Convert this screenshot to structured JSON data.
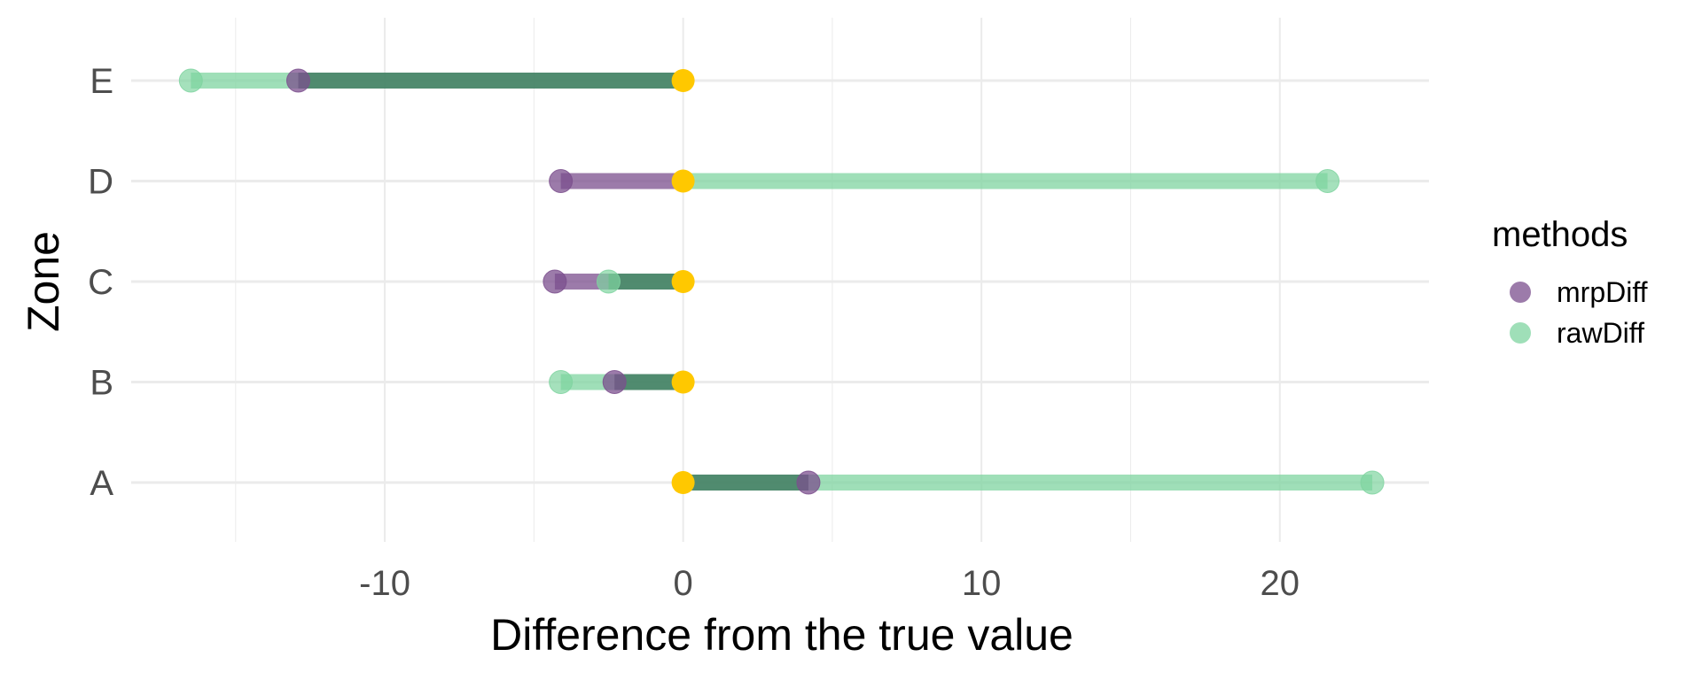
{
  "chart_data": {
    "type": "dumbbell",
    "xlabel": "Difference from the true value",
    "ylabel": "Zone",
    "xlim": [
      -18.5,
      25
    ],
    "x_ticks": [
      -10,
      0,
      10,
      20
    ],
    "x_tick_labels": [
      "-10",
      "0",
      "10",
      "20"
    ],
    "categories": [
      "A",
      "B",
      "C",
      "D",
      "E"
    ],
    "grid": true,
    "baseline_value": 0,
    "series": [
      {
        "name": "mrpDiff",
        "values": [
          4.2,
          -2.3,
          -4.3,
          -4.1,
          -12.9
        ]
      },
      {
        "name": "rawDiff",
        "values": [
          23.1,
          -4.1,
          -2.5,
          21.6,
          -16.5
        ]
      }
    ],
    "colors": {
      "mrpDiff": "#7b4f8d",
      "rawDiff": "#7fd4a0",
      "overlap": "#3d7a5e",
      "baseline": "#ffc800",
      "grid": "#ebebeb"
    },
    "legend": {
      "title": "methods",
      "position": "right",
      "entries": [
        "mrpDiff",
        "rawDiff"
      ]
    }
  }
}
